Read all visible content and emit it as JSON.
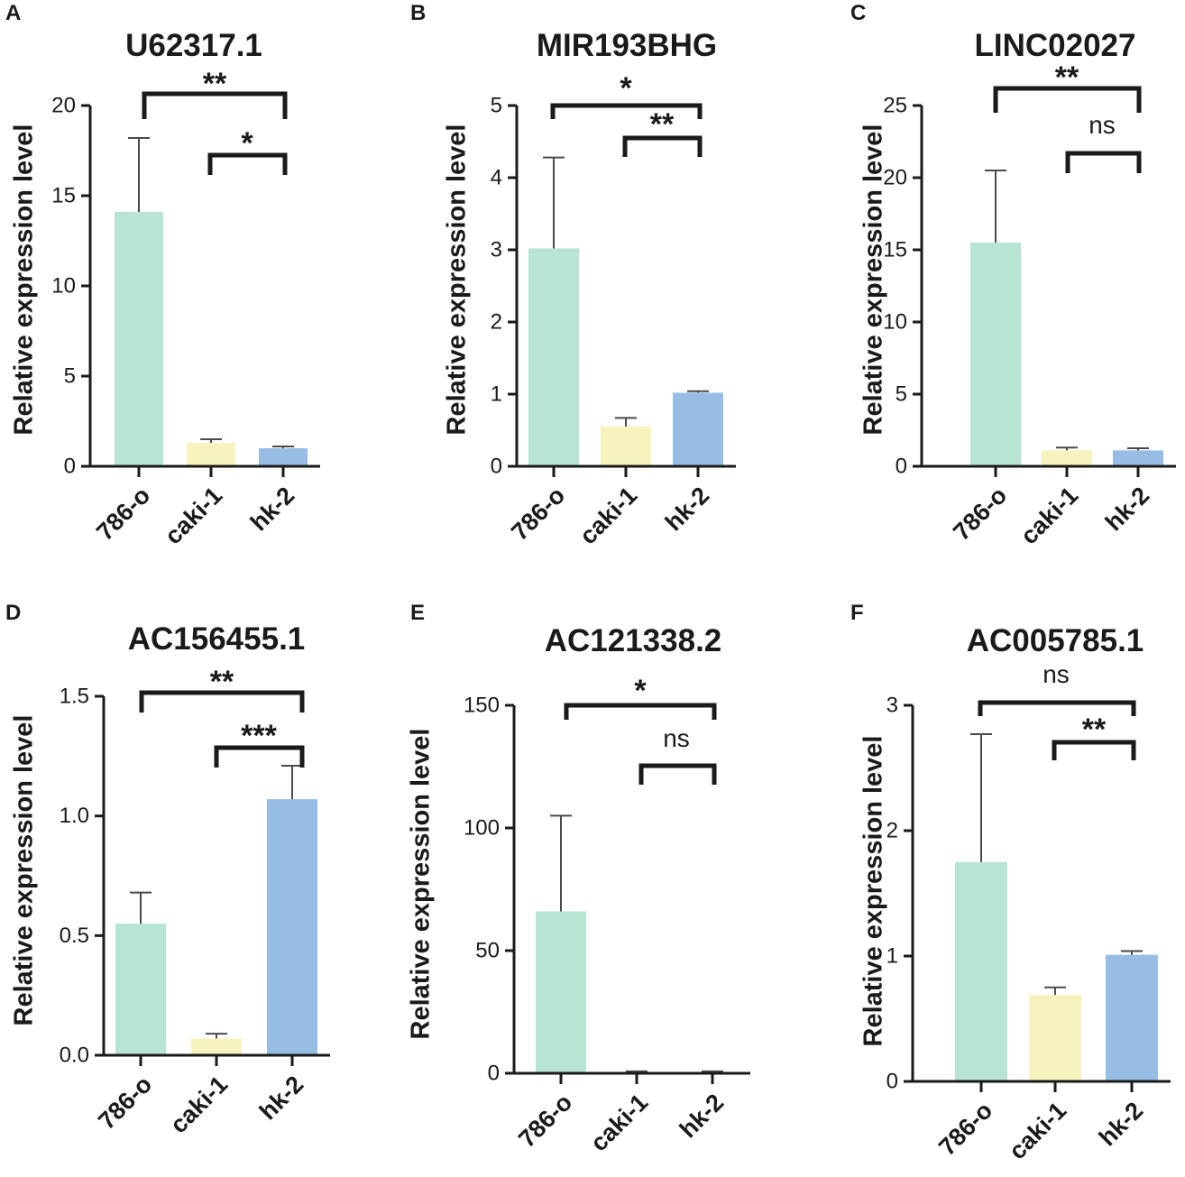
{
  "figure": {
    "categories": [
      "786-o",
      "caki-1",
      "hk-2"
    ],
    "colors": [
      "#b8e4d4",
      "#f6f3bf",
      "#98bde4"
    ],
    "ylabel": "Relative expression level"
  },
  "chart_data": [
    {
      "panel": "A",
      "type": "bar",
      "title": "U62317.1",
      "categories": [
        "786-o",
        "caki-1",
        "hk-2"
      ],
      "values": [
        14.1,
        1.3,
        1.0
      ],
      "errors": [
        4.1,
        0.2,
        0.1
      ],
      "xlabel": "",
      "ylabel": "Relative expression level",
      "ylim": [
        0,
        20
      ],
      "yticks": [
        0,
        5,
        10,
        15,
        20
      ],
      "significance": [
        {
          "from": "786-o",
          "to": "hk-2",
          "label": "**"
        },
        {
          "from": "caki-1",
          "to": "hk-2",
          "label": "*"
        }
      ]
    },
    {
      "panel": "B",
      "type": "bar",
      "title": "MIR193BHG",
      "categories": [
        "786-o",
        "caki-1",
        "hk-2"
      ],
      "values": [
        3.02,
        0.55,
        1.02
      ],
      "errors": [
        1.26,
        0.12,
        0.02
      ],
      "xlabel": "",
      "ylabel": "Relative expression level",
      "ylim": [
        0,
        5
      ],
      "yticks": [
        0,
        1,
        2,
        3,
        4,
        5
      ],
      "significance": [
        {
          "from": "786-o",
          "to": "hk-2",
          "label": "*"
        },
        {
          "from": "caki-1",
          "to": "hk-2",
          "label": "**"
        }
      ]
    },
    {
      "panel": "C",
      "type": "bar",
      "title": "LINC02027",
      "categories": [
        "786-o",
        "caki-1",
        "hk-2"
      ],
      "values": [
        15.5,
        1.1,
        1.1
      ],
      "errors": [
        5.0,
        0.2,
        0.15
      ],
      "xlabel": "",
      "ylabel": "Relative expression level",
      "ylim": [
        0,
        25
      ],
      "yticks": [
        0,
        5,
        10,
        15,
        20,
        25
      ],
      "significance": [
        {
          "from": "786-o",
          "to": "hk-2",
          "label": "**"
        },
        {
          "from": "caki-1",
          "to": "hk-2",
          "label": "ns"
        }
      ]
    },
    {
      "panel": "D",
      "type": "bar",
      "title": "AC156455.1",
      "categories": [
        "786-o",
        "caki-1",
        "hk-2"
      ],
      "values": [
        0.55,
        0.07,
        1.07
      ],
      "errors": [
        0.13,
        0.02,
        0.14
      ],
      "xlabel": "",
      "ylabel": "Relative expression level",
      "ylim": [
        0,
        1.5
      ],
      "yticks": [
        "0.0",
        "0.5",
        "1.0",
        "1.5"
      ],
      "significance": [
        {
          "from": "786-o",
          "to": "hk-2",
          "label": "**"
        },
        {
          "from": "caki-1",
          "to": "hk-2",
          "label": "***"
        }
      ]
    },
    {
      "panel": "E",
      "type": "bar",
      "title": "AC121338.2",
      "categories": [
        "786-o",
        "caki-1",
        "hk-2"
      ],
      "values": [
        66,
        0.5,
        0.5
      ],
      "errors": [
        39,
        0.3,
        0.3
      ],
      "xlabel": "",
      "ylabel": "Relative expression level",
      "ylim": [
        0,
        150
      ],
      "yticks": [
        0,
        50,
        100,
        150
      ],
      "significance": [
        {
          "from": "786-o",
          "to": "hk-2",
          "label": "*"
        },
        {
          "from": "caki-1",
          "to": "hk-2",
          "label": "ns"
        }
      ]
    },
    {
      "panel": "F",
      "type": "bar",
      "title": "AC005785.1",
      "categories": [
        "786-o",
        "caki-1",
        "hk-2"
      ],
      "values": [
        1.75,
        0.69,
        1.01
      ],
      "errors": [
        1.02,
        0.06,
        0.03
      ],
      "xlabel": "",
      "ylabel": "Relative expression level",
      "ylim": [
        0,
        3
      ],
      "yticks": [
        0,
        1,
        2,
        3
      ],
      "significance": [
        {
          "from": "786-o",
          "to": "hk-2",
          "label": "ns"
        },
        {
          "from": "caki-1",
          "to": "hk-2",
          "label": "**"
        }
      ]
    }
  ]
}
